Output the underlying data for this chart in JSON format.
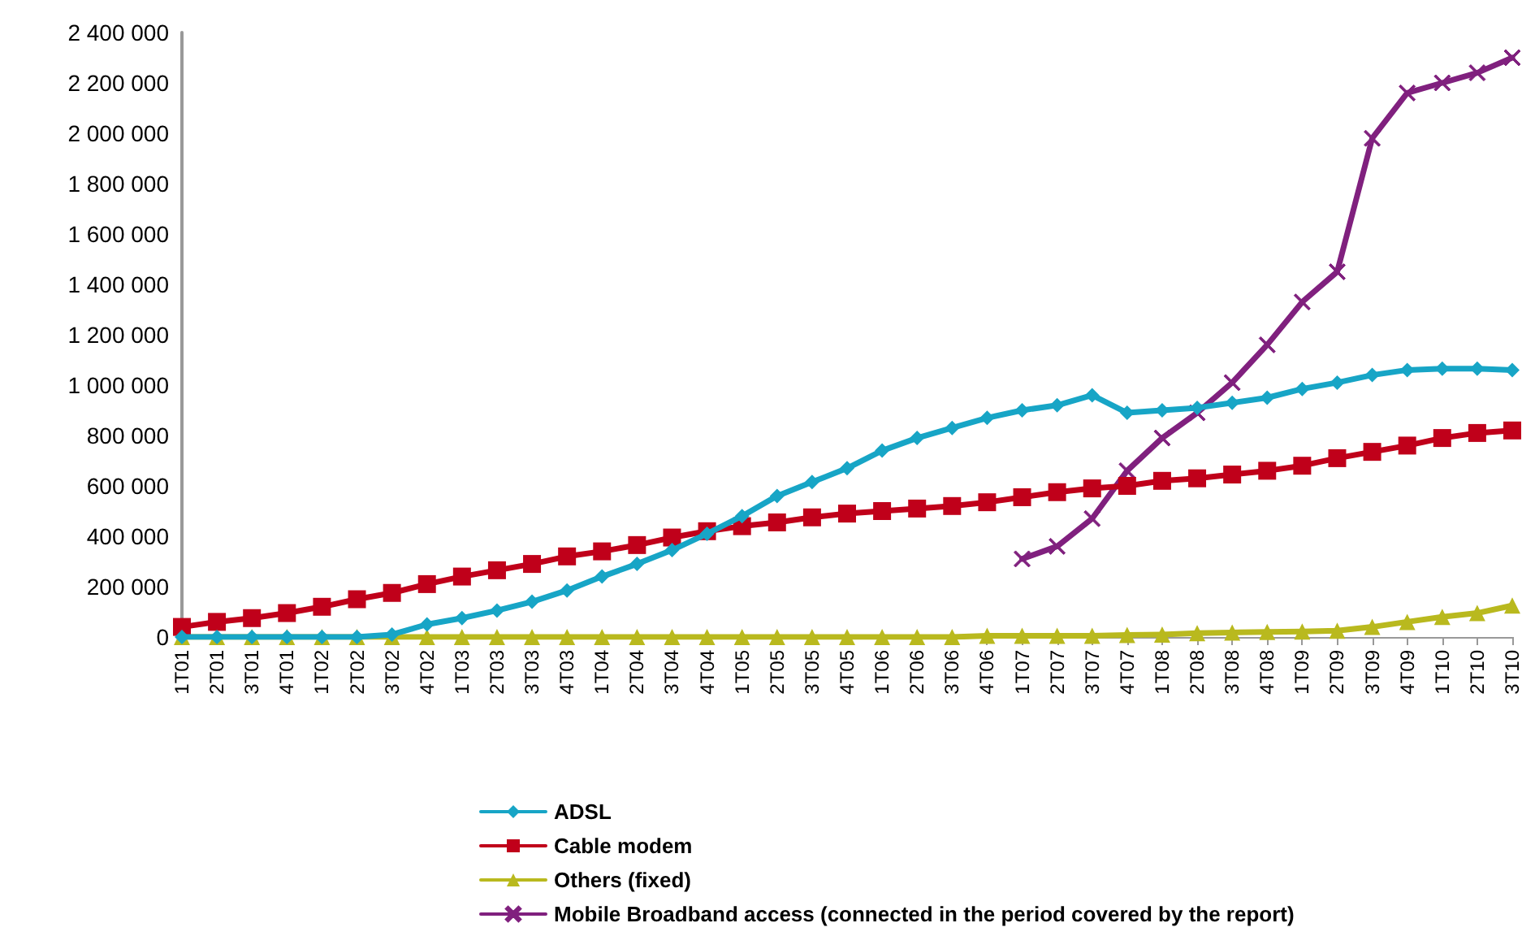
{
  "chart_data": {
    "type": "line",
    "categories": [
      "1T01",
      "2T01",
      "3T01",
      "4T01",
      "1T02",
      "2T02",
      "3T02",
      "4T02",
      "1T03",
      "2T03",
      "3T03",
      "4T03",
      "1T04",
      "2T04",
      "3T04",
      "4T04",
      "1T05",
      "2T05",
      "3T05",
      "4T05",
      "1T06",
      "2T06",
      "3T06",
      "4T06",
      "1T07",
      "2T07",
      "3T07",
      "4T07",
      "1T08",
      "2T08",
      "3T08",
      "4T08",
      "1T09",
      "2T09",
      "3T09",
      "4T09",
      "1T10",
      "2T10",
      "3T10"
    ],
    "series": [
      {
        "name": "ADSL",
        "color": "#17a5c6",
        "marker": "diamond",
        "values": [
          0,
          0,
          0,
          0,
          0,
          0,
          10000,
          50000,
          75000,
          105000,
          140000,
          185000,
          240000,
          290000,
          345000,
          410000,
          480000,
          560000,
          615000,
          670000,
          740000,
          790000,
          830000,
          870000,
          900000,
          920000,
          960000,
          890000,
          900000,
          910000,
          930000,
          950000,
          985000,
          1010000,
          1040000,
          1060000,
          1065000,
          1065000,
          1060000
        ]
      },
      {
        "name": "Cable modem",
        "color": "#c0001a",
        "marker": "square",
        "values": [
          40000,
          60000,
          75000,
          95000,
          120000,
          150000,
          175000,
          210000,
          240000,
          265000,
          290000,
          320000,
          340000,
          365000,
          395000,
          420000,
          440000,
          455000,
          475000,
          490000,
          500000,
          510000,
          520000,
          535000,
          555000,
          575000,
          590000,
          600000,
          620000,
          630000,
          645000,
          660000,
          680000,
          710000,
          735000,
          760000,
          790000,
          810000,
          820000
        ]
      },
      {
        "name": "Others (fixed)",
        "color": "#b9b91e",
        "marker": "triangle",
        "values": [
          0,
          0,
          0,
          0,
          0,
          0,
          0,
          0,
          0,
          0,
          0,
          0,
          0,
          0,
          0,
          0,
          0,
          0,
          0,
          0,
          0,
          0,
          0,
          5000,
          5000,
          5000,
          5000,
          8000,
          10000,
          15000,
          18000,
          20000,
          22000,
          25000,
          40000,
          60000,
          80000,
          95000,
          125000
        ]
      },
      {
        "name": "Mobile Broadband access (connected in the period covered by the report)",
        "color": "#80207e",
        "marker": "cross",
        "values": [
          null,
          null,
          null,
          null,
          null,
          null,
          null,
          null,
          null,
          null,
          null,
          null,
          null,
          null,
          null,
          null,
          null,
          null,
          null,
          null,
          null,
          null,
          null,
          null,
          310000,
          360000,
          470000,
          660000,
          790000,
          890000,
          1010000,
          1160000,
          1330000,
          1450000,
          1980000,
          2160000,
          2200000,
          2240000,
          2300000
        ]
      }
    ],
    "ylim": [
      0,
      2400000
    ],
    "yticks": [
      {
        "value": 0,
        "label": "0"
      },
      {
        "value": 200000,
        "label": "200 000"
      },
      {
        "value": 400000,
        "label": "400 000"
      },
      {
        "value": 600000,
        "label": "600 000"
      },
      {
        "value": 800000,
        "label": "800 000"
      },
      {
        "value": 1000000,
        "label": "1 000 000"
      },
      {
        "value": 1200000,
        "label": "1 200 000"
      },
      {
        "value": 1400000,
        "label": "1 400 000"
      },
      {
        "value": 1600000,
        "label": "1 600 000"
      },
      {
        "value": 1800000,
        "label": "1 800 000"
      },
      {
        "value": 2000000,
        "label": "2 000 000"
      },
      {
        "value": 2200000,
        "label": "2 200 000"
      },
      {
        "value": 2400000,
        "label": "2 400 000"
      }
    ],
    "grid": false,
    "legend": "bottom"
  }
}
